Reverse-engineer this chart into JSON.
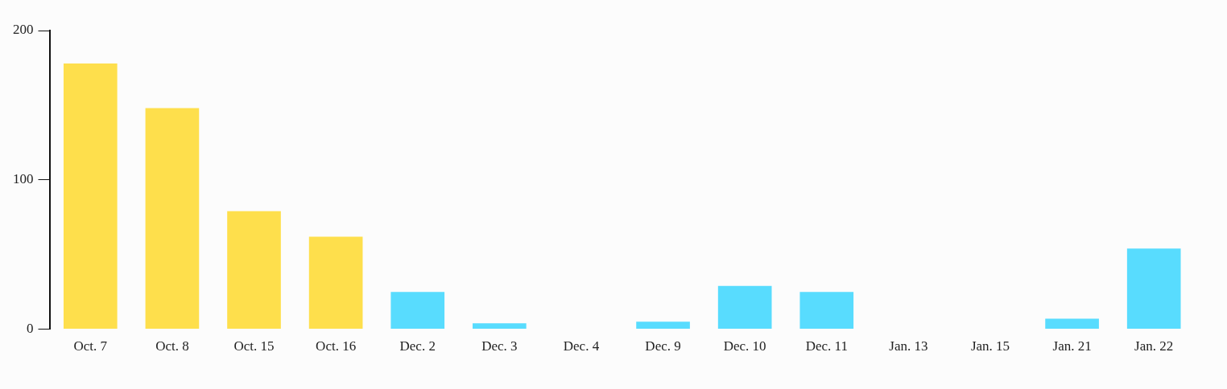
{
  "chart_data": {
    "type": "bar",
    "categories": [
      "Oct. 7",
      "Oct. 8",
      "Oct. 15",
      "Oct. 16",
      "Dec. 2",
      "Dec. 3",
      "Dec. 4",
      "Dec. 9",
      "Dec. 10",
      "Dec. 11",
      "Jan. 13",
      "Jan. 15",
      "Jan. 21",
      "Jan. 22"
    ],
    "values": [
      178,
      148,
      79,
      62,
      25,
      4,
      0,
      5,
      29,
      25,
      0,
      0,
      7,
      54
    ],
    "colors": [
      "#fedf4c",
      "#fedf4c",
      "#fedf4c",
      "#fedf4c",
      "#58dcfe",
      "#58dcfe",
      "#58dcfe",
      "#58dcfe",
      "#58dcfe",
      "#58dcfe",
      "#58dcfe",
      "#58dcfe",
      "#58dcfe",
      "#58dcfe"
    ],
    "ylim": [
      0,
      200
    ],
    "yticks": [
      0,
      100,
      200
    ],
    "grid": false,
    "legend": false
  }
}
